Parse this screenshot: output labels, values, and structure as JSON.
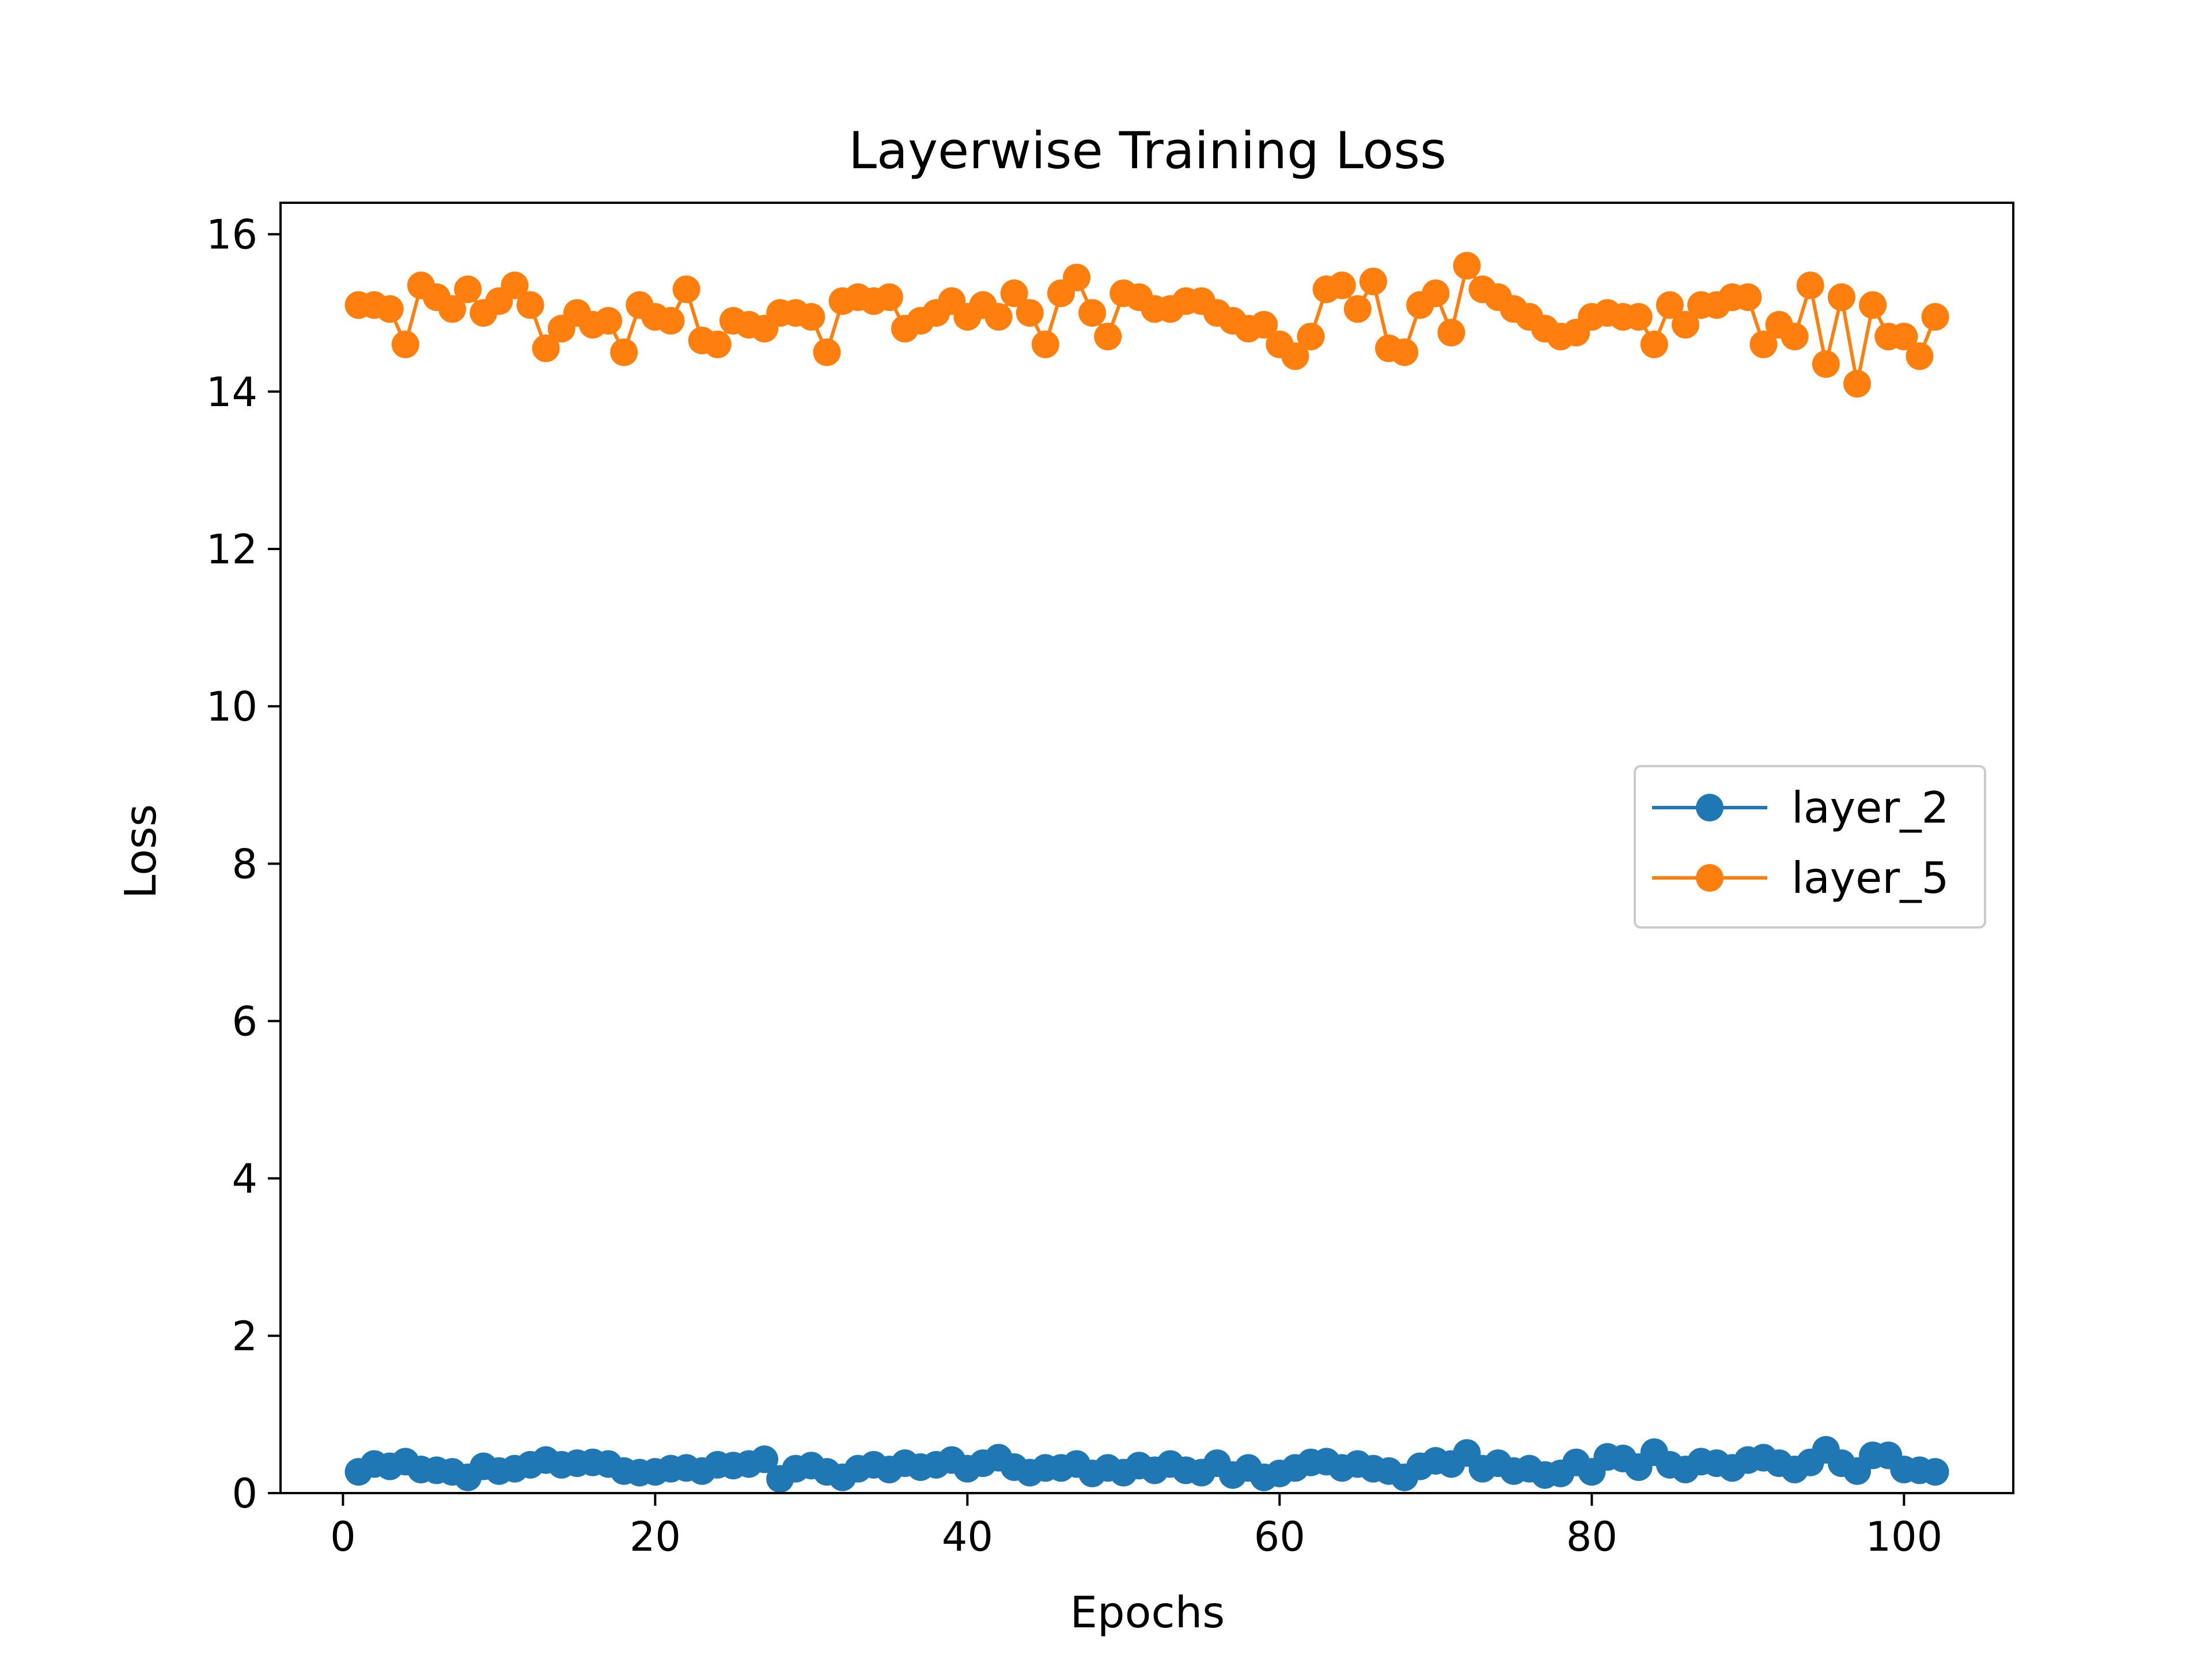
{
  "chart_data": {
    "type": "line",
    "title": "Layerwise Training Loss",
    "xlabel": "Epochs",
    "ylabel": "Loss",
    "xlim": [
      -4,
      107
    ],
    "ylim": [
      0,
      16.4
    ],
    "x_ticks": [
      0,
      20,
      40,
      60,
      80,
      100
    ],
    "y_ticks": [
      0,
      2,
      4,
      6,
      8,
      10,
      12,
      14,
      16
    ],
    "x_tick_labels": [
      "0",
      "20",
      "40",
      "60",
      "80",
      "100"
    ],
    "y_tick_labels": [
      "0",
      "2",
      "4",
      "6",
      "8",
      "10",
      "12",
      "14",
      "16"
    ],
    "grid": false,
    "legend_position": "center-right",
    "x": [
      1,
      2,
      3,
      4,
      5,
      6,
      7,
      8,
      9,
      10,
      11,
      12,
      13,
      14,
      15,
      16,
      17,
      18,
      19,
      20,
      21,
      22,
      23,
      24,
      25,
      26,
      27,
      28,
      29,
      30,
      31,
      32,
      33,
      34,
      35,
      36,
      37,
      38,
      39,
      40,
      41,
      42,
      43,
      44,
      45,
      46,
      47,
      48,
      49,
      50,
      51,
      52,
      53,
      54,
      55,
      56,
      57,
      58,
      59,
      60,
      61,
      62,
      63,
      64,
      65,
      66,
      67,
      68,
      69,
      70,
      71,
      72,
      73,
      74,
      75,
      76,
      77,
      78,
      79,
      80,
      81,
      82,
      83,
      84,
      85,
      86,
      87,
      88,
      89,
      90,
      91,
      92,
      93,
      94,
      95,
      96,
      97,
      98,
      99,
      100,
      101,
      102
    ],
    "series": [
      {
        "name": "layer_2",
        "color": "#1f77b4",
        "values": [
          0.27,
          0.37,
          0.34,
          0.4,
          0.3,
          0.29,
          0.27,
          0.2,
          0.34,
          0.28,
          0.31,
          0.36,
          0.42,
          0.36,
          0.38,
          0.39,
          0.37,
          0.28,
          0.26,
          0.27,
          0.31,
          0.32,
          0.28,
          0.36,
          0.35,
          0.37,
          0.43,
          0.18,
          0.31,
          0.35,
          0.27,
          0.2,
          0.31,
          0.36,
          0.3,
          0.38,
          0.33,
          0.36,
          0.42,
          0.31,
          0.38,
          0.45,
          0.33,
          0.26,
          0.32,
          0.32,
          0.37,
          0.25,
          0.32,
          0.26,
          0.35,
          0.29,
          0.37,
          0.29,
          0.26,
          0.38,
          0.23,
          0.32,
          0.2,
          0.25,
          0.32,
          0.39,
          0.4,
          0.32,
          0.37,
          0.31,
          0.28,
          0.2,
          0.34,
          0.41,
          0.37,
          0.51,
          0.31,
          0.38,
          0.28,
          0.31,
          0.23,
          0.25,
          0.39,
          0.27,
          0.46,
          0.44,
          0.33,
          0.52,
          0.36,
          0.3,
          0.4,
          0.38,
          0.32,
          0.42,
          0.45,
          0.38,
          0.3,
          0.39,
          0.55,
          0.38,
          0.28,
          0.48,
          0.48,
          0.3,
          0.29,
          0.27
        ]
      },
      {
        "name": "layer_5",
        "color": "#ff7f0e",
        "values": [
          15.1,
          15.1,
          15.05,
          14.6,
          15.35,
          15.2,
          15.05,
          15.3,
          15.0,
          15.15,
          15.35,
          15.1,
          14.55,
          14.8,
          15.0,
          14.85,
          14.9,
          14.5,
          15.1,
          14.95,
          14.9,
          15.3,
          14.65,
          14.6,
          14.9,
          14.85,
          14.8,
          15.0,
          15.0,
          14.95,
          14.5,
          15.15,
          15.2,
          15.15,
          15.2,
          14.8,
          14.9,
          15.0,
          15.15,
          14.95,
          15.1,
          14.95,
          15.25,
          15.0,
          14.6,
          15.25,
          15.45,
          15.0,
          14.7,
          15.25,
          15.2,
          15.05,
          15.05,
          15.15,
          15.15,
          15.0,
          14.9,
          14.8,
          14.85,
          14.6,
          14.45,
          14.7,
          15.3,
          15.35,
          15.05,
          15.4,
          14.55,
          14.5,
          15.1,
          15.25,
          14.75,
          15.6,
          15.3,
          15.2,
          15.05,
          14.95,
          14.8,
          14.7,
          14.75,
          14.95,
          15.0,
          14.95,
          14.95,
          14.6,
          15.1,
          14.85,
          15.1,
          15.1,
          15.2,
          15.2,
          14.6,
          14.85,
          14.7,
          15.35,
          14.35,
          15.2,
          14.1,
          15.1,
          14.7,
          14.7,
          14.45,
          14.95
        ]
      }
    ]
  }
}
